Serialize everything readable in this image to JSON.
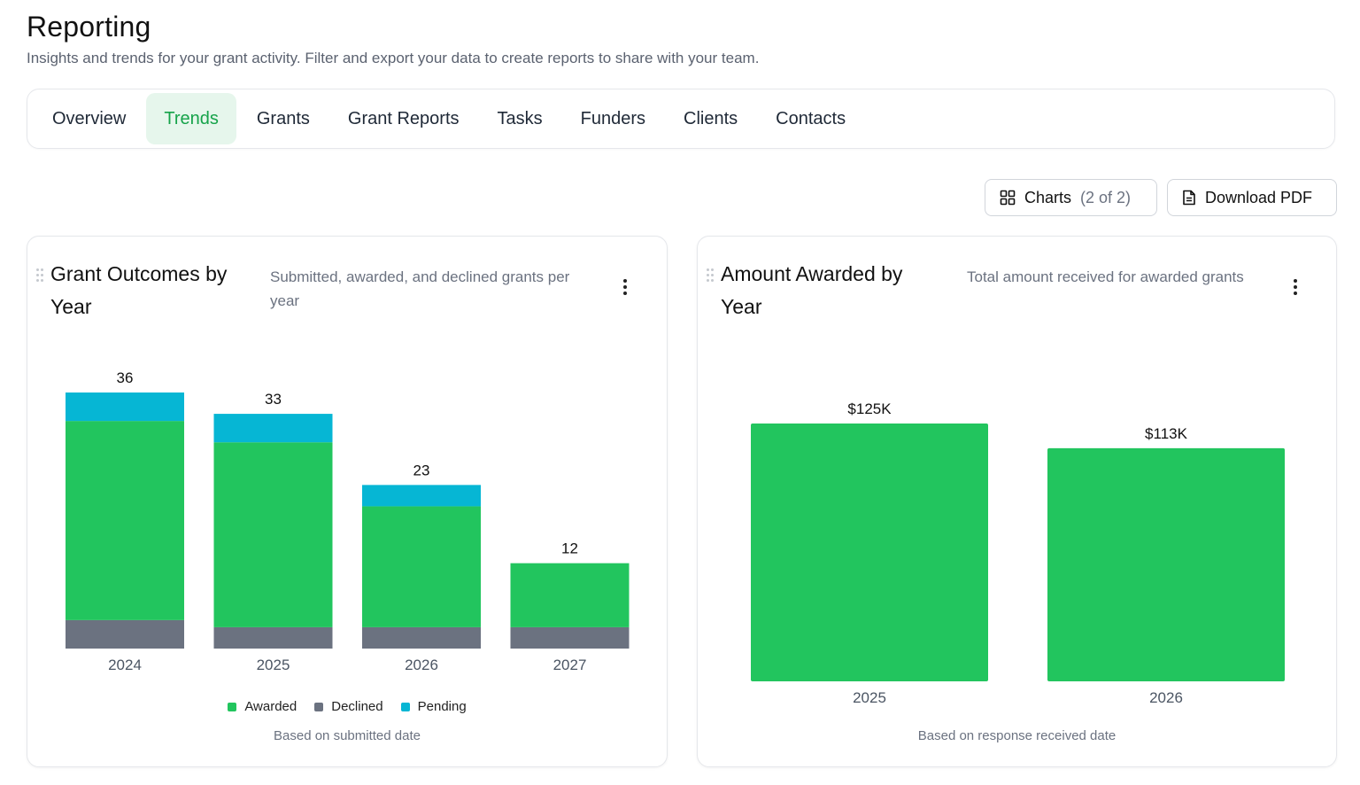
{
  "header": {
    "title": "Reporting",
    "subtitle": "Insights and trends for your grant activity. Filter and export your data to create reports to share with your team."
  },
  "tabs": [
    {
      "label": "Overview",
      "active": false
    },
    {
      "label": "Trends",
      "active": true
    },
    {
      "label": "Grants",
      "active": false
    },
    {
      "label": "Grant Reports",
      "active": false
    },
    {
      "label": "Tasks",
      "active": false
    },
    {
      "label": "Funders",
      "active": false
    },
    {
      "label": "Clients",
      "active": false
    },
    {
      "label": "Contacts",
      "active": false
    }
  ],
  "toolbar": {
    "charts_label": "Charts",
    "charts_count": "(2 of 2)",
    "download_label": "Download PDF"
  },
  "colors": {
    "awarded": "#22c55e",
    "declined": "#6b7280",
    "pending": "#06b6d4",
    "accent": "#16a34a"
  },
  "cards": [
    {
      "title": "Grant Outcomes by Year",
      "description": "Submitted, awarded, and declined grants per year",
      "footnote": "Based on submitted date"
    },
    {
      "title": "Amount Awarded by Year",
      "description": "Total amount received for awarded grants",
      "footnote": "Based on response received date"
    }
  ],
  "chart_data": [
    {
      "type": "bar",
      "stacked": true,
      "categories": [
        "2024",
        "2025",
        "2026",
        "2027"
      ],
      "series": [
        {
          "name": "Declined",
          "values": [
            4,
            3,
            3,
            3
          ]
        },
        {
          "name": "Awarded",
          "values": [
            28,
            26,
            17,
            9
          ]
        },
        {
          "name": "Pending",
          "values": [
            4,
            4,
            3,
            0
          ]
        }
      ],
      "totals": [
        36,
        33,
        23,
        12
      ],
      "legend": [
        "Awarded",
        "Declined",
        "Pending"
      ],
      "legend_position": "bottom",
      "ylim": [
        0,
        36
      ],
      "grid": false
    },
    {
      "type": "bar",
      "categories": [
        "2025",
        "2026"
      ],
      "values": [
        125,
        113
      ],
      "value_labels": [
        "$125K",
        "$113K"
      ],
      "unit": "thousand USD",
      "ylim": [
        0,
        125
      ],
      "grid": false
    }
  ]
}
